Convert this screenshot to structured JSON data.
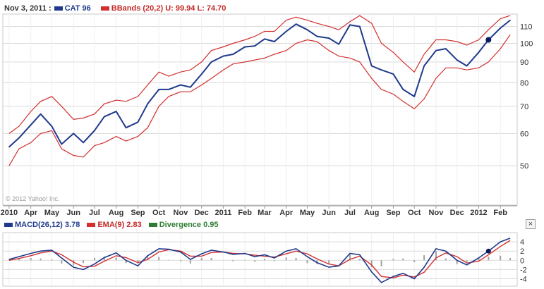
{
  "header": {
    "date": "Nov 3, 2011 :",
    "symbol_label": "CAT",
    "symbol_value": "96",
    "bbands_label": "BBands (20,2)",
    "bbands_upper": "U: 99.94",
    "bbands_lower": "L: 74.70"
  },
  "macd_header": {
    "macd_label": "MACD(26,12)",
    "macd_value": "3.78",
    "ema_label": "EMA(9)",
    "ema_value": "2.83",
    "div_label": "Divergence",
    "div_value": "0.95"
  },
  "watermark": "© 2012 Yahoo! Inc.",
  "close_label": "×",
  "colors": {
    "price": "#1f3a8c",
    "bands": "#d32f2f",
    "macd": "#1f3a8c",
    "ema": "#d32f2f",
    "divergence": "#2e7d32",
    "histogram": "#a0a0a0",
    "grid": "#d9d9d9"
  },
  "chart_data": [
    {
      "type": "line",
      "scale": "log",
      "ylim": [
        40,
        118
      ],
      "y_ticks": [
        "50",
        "60",
        "70",
        "80",
        "90",
        "100",
        "110"
      ],
      "x_ticks": [
        "2010",
        "Apr",
        "May",
        "Jun",
        "Jul",
        "Aug",
        "Sep",
        "Oct",
        "Nov",
        "Dec",
        "2011",
        "Feb",
        "Mar",
        "Apr",
        "May",
        "Jun",
        "Jul",
        "Aug",
        "Sep",
        "Oct",
        "Nov",
        "Dec",
        "2012",
        "Feb"
      ],
      "x": [
        "2010-03-01",
        "2010-03-15",
        "2010-04-01",
        "2010-04-15",
        "2010-05-01",
        "2010-05-15",
        "2010-06-01",
        "2010-06-15",
        "2010-07-01",
        "2010-07-15",
        "2010-08-01",
        "2010-08-15",
        "2010-09-01",
        "2010-09-15",
        "2010-10-01",
        "2010-10-15",
        "2010-11-01",
        "2010-11-15",
        "2010-12-01",
        "2010-12-15",
        "2011-01-01",
        "2011-01-15",
        "2011-02-01",
        "2011-02-15",
        "2011-03-01",
        "2011-03-15",
        "2011-04-01",
        "2011-04-15",
        "2011-05-01",
        "2011-05-15",
        "2011-06-01",
        "2011-06-15",
        "2011-07-01",
        "2011-07-15",
        "2011-08-01",
        "2011-08-15",
        "2011-09-01",
        "2011-09-15",
        "2011-10-01",
        "2011-10-15",
        "2011-11-01",
        "2011-11-15",
        "2011-12-01",
        "2011-12-15",
        "2012-01-01",
        "2012-01-15",
        "2012-02-01",
        "2012-02-15"
      ],
      "series": [
        {
          "name": "CAT",
          "values": [
            55.6,
            58.5,
            63.0,
            67.0,
            62.5,
            56.5,
            60.0,
            57.0,
            61.0,
            66.0,
            68.0,
            62.0,
            64.0,
            71.0,
            77.0,
            77.0,
            79.0,
            78.0,
            84.0,
            90.0,
            93.0,
            94.0,
            98.0,
            98.5,
            102.5,
            101.0,
            107.0,
            111.5,
            108.0,
            104.0,
            103.0,
            99.5,
            111.0,
            110.0,
            88.0,
            86.0,
            84.0,
            77.0,
            74.0,
            88.0,
            96.0,
            97.0,
            91.0,
            88.0,
            95.0,
            102.0,
            109.0,
            114.0
          ]
        },
        {
          "name": "BBands Upper",
          "values": [
            60.0,
            62.5,
            68.0,
            72.0,
            74.0,
            70.0,
            65.0,
            65.5,
            67.0,
            71.0,
            72.5,
            72.0,
            74.0,
            79.0,
            85.0,
            83.0,
            85.0,
            86.0,
            90.0,
            96.0,
            98.0,
            100.0,
            102.0,
            104.0,
            107.0,
            107.0,
            114.0,
            116.0,
            114.0,
            112.0,
            110.0,
            108.0,
            113.0,
            117.0,
            112.0,
            100.0,
            95.0,
            90.0,
            85.0,
            94.0,
            102.0,
            102.0,
            101.0,
            99.0,
            102.0,
            108.0,
            115.0,
            117.0
          ]
        },
        {
          "name": "BBands Lower",
          "values": [
            50.0,
            55.0,
            57.0,
            60.0,
            61.0,
            55.0,
            53.0,
            52.5,
            56.0,
            57.0,
            59.0,
            57.5,
            59.0,
            62.0,
            70.0,
            74.0,
            76.0,
            76.0,
            79.0,
            82.0,
            86.0,
            89.0,
            90.0,
            91.0,
            92.0,
            94.0,
            96.0,
            100.0,
            102.0,
            101.0,
            96.0,
            93.0,
            92.0,
            90.0,
            82.0,
            77.0,
            75.0,
            72.0,
            69.0,
            73.0,
            82.0,
            87.0,
            87.0,
            86.0,
            87.0,
            90.0,
            97.0,
            105.0
          ]
        }
      ]
    },
    {
      "type": "line",
      "ylim": [
        -5.6,
        6
      ],
      "y_ticks": [
        "4",
        "2",
        "0",
        "-2",
        "-4"
      ],
      "x": [
        "2010-03-01",
        "2010-03-15",
        "2010-04-01",
        "2010-04-15",
        "2010-05-01",
        "2010-05-15",
        "2010-06-01",
        "2010-06-15",
        "2010-07-01",
        "2010-07-15",
        "2010-08-01",
        "2010-08-15",
        "2010-09-01",
        "2010-09-15",
        "2010-10-01",
        "2010-10-15",
        "2010-11-01",
        "2010-11-15",
        "2010-12-01",
        "2010-12-15",
        "2011-01-01",
        "2011-01-15",
        "2011-02-01",
        "2011-02-15",
        "2011-03-01",
        "2011-03-15",
        "2011-04-01",
        "2011-04-15",
        "2011-05-01",
        "2011-05-15",
        "2011-06-01",
        "2011-06-15",
        "2011-07-01",
        "2011-07-15",
        "2011-08-01",
        "2011-08-15",
        "2011-09-01",
        "2011-09-15",
        "2011-10-01",
        "2011-10-15",
        "2011-11-01",
        "2011-11-15",
        "2011-12-01",
        "2011-12-15",
        "2012-01-01",
        "2012-01-15",
        "2012-02-01",
        "2012-02-15"
      ],
      "series": [
        {
          "name": "MACD",
          "values": [
            0.2,
            0.8,
            1.5,
            2.0,
            2.2,
            0.5,
            -1.5,
            -2.0,
            -0.8,
            0.6,
            1.6,
            0.0,
            -1.2,
            1.0,
            2.5,
            2.4,
            1.8,
            0.2,
            1.4,
            2.2,
            1.8,
            1.3,
            1.5,
            0.8,
            1.2,
            0.5,
            2.0,
            2.5,
            0.8,
            -0.5,
            -1.5,
            -1.2,
            1.5,
            1.2,
            -2.5,
            -4.8,
            -3.5,
            -2.8,
            -4.0,
            -1.5,
            2.5,
            2.0,
            0.0,
            -1.0,
            0.5,
            2.0,
            4.0,
            4.8
          ]
        },
        {
          "name": "EMA",
          "values": [
            0.0,
            0.4,
            1.0,
            1.6,
            2.0,
            1.2,
            -0.4,
            -1.4,
            -1.3,
            -0.2,
            1.0,
            0.6,
            -0.5,
            0.2,
            1.8,
            2.3,
            2.0,
            0.9,
            0.9,
            1.7,
            1.8,
            1.5,
            1.4,
            1.1,
            0.9,
            0.7,
            1.4,
            2.0,
            1.4,
            0.3,
            -0.8,
            -1.2,
            0.2,
            0.9,
            -1.0,
            -3.5,
            -3.8,
            -3.2,
            -3.6,
            -2.6,
            0.5,
            1.6,
            0.8,
            -0.6,
            -0.2,
            1.2,
            3.0,
            4.3
          ]
        }
      ]
    }
  ]
}
